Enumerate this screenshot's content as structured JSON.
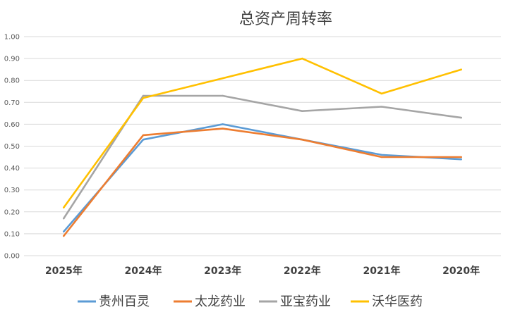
{
  "chart_data": {
    "type": "line",
    "title": "总资产周转率",
    "categories": [
      "2025年",
      "2024年",
      "2023年",
      "2022年",
      "2021年",
      "2020年"
    ],
    "ylim": [
      0,
      1.0
    ],
    "yticks": [
      "0.00",
      "0.10",
      "0.20",
      "0.30",
      "0.40",
      "0.50",
      "0.60",
      "0.70",
      "0.80",
      "0.90",
      "1.00"
    ],
    "grid": true,
    "legend_position": "bottom",
    "series": [
      {
        "name": "贵州百灵",
        "color": "#5b9bd5",
        "values": [
          0.11,
          0.53,
          0.6,
          0.53,
          0.46,
          0.44
        ]
      },
      {
        "name": "太龙药业",
        "color": "#ed7d31",
        "values": [
          0.09,
          0.55,
          0.58,
          0.53,
          0.45,
          0.45
        ]
      },
      {
        "name": "亚宝药业",
        "color": "#a5a5a5",
        "values": [
          0.17,
          0.73,
          0.73,
          0.66,
          0.68,
          0.63
        ]
      },
      {
        "name": "沃华医药",
        "color": "#ffc000",
        "values": [
          0.22,
          0.72,
          0.81,
          0.9,
          0.74,
          0.85
        ]
      }
    ]
  }
}
